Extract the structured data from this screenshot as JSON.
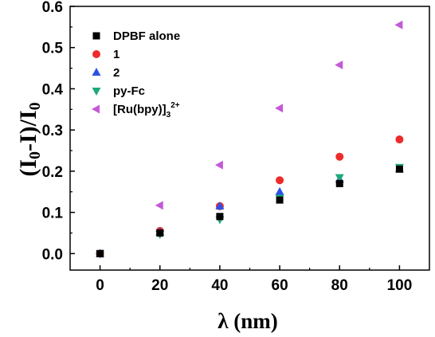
{
  "chart_data": {
    "type": "scatter",
    "xlabel": "λ (nm)",
    "ylabel_parts": [
      "(I",
      "0",
      "-I)/I",
      "0"
    ],
    "xlim": [
      -10,
      110
    ],
    "ylim": [
      -0.04,
      0.6
    ],
    "xticks": [
      0,
      20,
      40,
      60,
      80,
      100
    ],
    "yticks": [
      0.0,
      0.1,
      0.2,
      0.3,
      0.4,
      0.5,
      0.6
    ],
    "ytick_labels": [
      "0.0",
      "0.1",
      "0.2",
      "0.3",
      "0.4",
      "0.5",
      "0.6"
    ],
    "grid": false,
    "legend_position": "top-left",
    "x": [
      0,
      20,
      40,
      60,
      80,
      100
    ],
    "series": [
      {
        "name": "DPBF alone",
        "marker": "square",
        "color": "#000000",
        "values": [
          0.0,
          0.05,
          0.09,
          0.13,
          0.17,
          0.205
        ]
      },
      {
        "name": "1",
        "marker": "circle",
        "color": "#ee2a2a",
        "values": [
          0.0,
          0.055,
          0.115,
          0.178,
          0.235,
          0.277
        ]
      },
      {
        "name": "2",
        "marker": "triangle-up",
        "color": "#2b52e8",
        "values": [
          0.0,
          0.052,
          0.115,
          0.15,
          0.18,
          0.205
        ]
      },
      {
        "name": "py-Fc",
        "marker": "triangle-down",
        "color": "#1ea97c",
        "values": [
          0.0,
          0.047,
          0.083,
          0.135,
          0.185,
          0.21
        ]
      },
      {
        "name_parts": [
          "[Ru(bpy)]",
          "3",
          "2+"
        ],
        "marker": "triangle-left",
        "color": "#c35ad6",
        "values": [
          0.0,
          0.117,
          0.215,
          0.353,
          0.458,
          0.555
        ]
      }
    ]
  }
}
